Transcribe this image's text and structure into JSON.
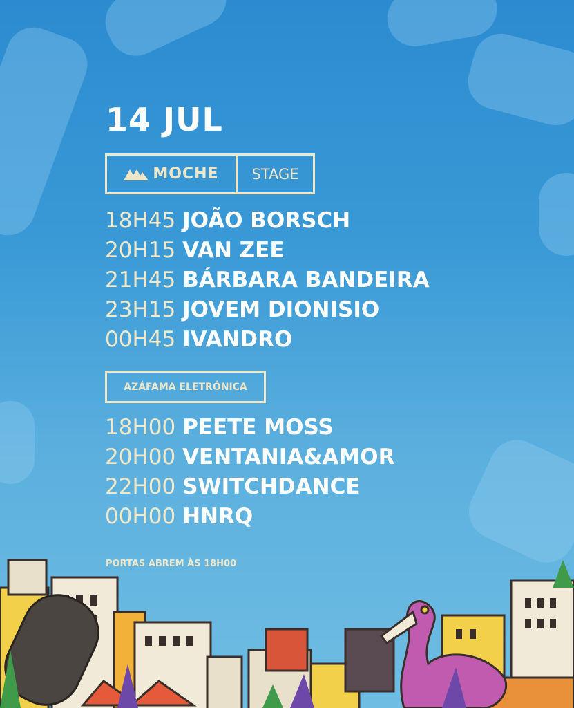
{
  "date": "14 JUL",
  "stage1": {
    "brand": "MOCHE",
    "label": "STAGE",
    "icon": "moche-logo-icon"
  },
  "stage1_lineup": [
    {
      "time": "18H45",
      "artist": "JOÃO BORSCH"
    },
    {
      "time": "20H15",
      "artist": "VAN ZEE"
    },
    {
      "time": "21H45",
      "artist": "BÁRBARA BANDEIRA"
    },
    {
      "time": "23H15",
      "artist": "JOVEM DIONISIO"
    },
    {
      "time": "00H45",
      "artist": "IVANDRO"
    }
  ],
  "stage2": {
    "label": "AZÁFAMA ELETRÓNICA"
  },
  "stage2_lineup": [
    {
      "time": "18H00",
      "artist": "PEETE MOSS"
    },
    {
      "time": "20H00",
      "artist": "VENTANIA&AMOR"
    },
    {
      "time": "22H00",
      "artist": "SWITCHDANCE"
    },
    {
      "time": "00H00",
      "artist": "HNRQ"
    }
  ],
  "doors": "PORTAS ABREM ÀS 18H00",
  "colors": {
    "background": "#3a9ad6",
    "cream": "#efe6c8",
    "white": "#ffffff",
    "flamingo": "#c05bb0"
  }
}
